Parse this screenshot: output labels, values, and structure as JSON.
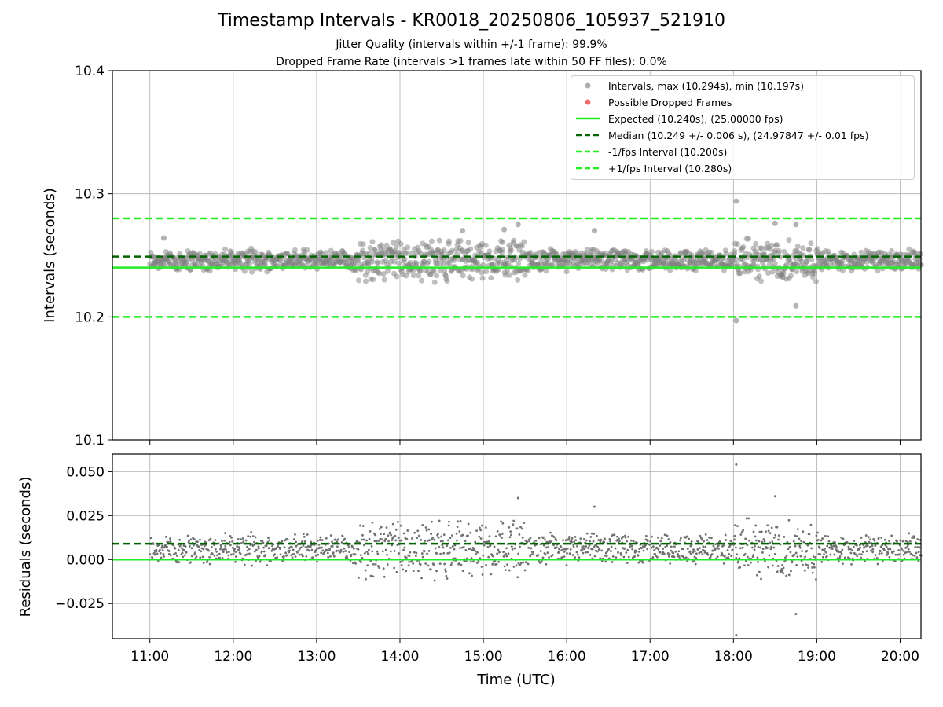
{
  "chart_data": [
    {
      "type": "scatter",
      "title": "Timestamp Intervals - KR0018_20250806_105937_521910",
      "subtitle_lines": [
        "Jitter Quality (intervals within +/-1 frame): 99.9%",
        "Dropped Frame Rate (intervals >1 frames late within 50 FF files): 0.0%"
      ],
      "ylabel": "Intervals (seconds)",
      "ylim": [
        10.1,
        10.4
      ],
      "y_ticks": [
        "10.1",
        "10.2",
        "10.3",
        "10.4"
      ],
      "xlim": [
        "10:33",
        "20:15"
      ],
      "grid": true,
      "legend_position": "top-right",
      "legend": [
        {
          "label": "Intervals, max (10.294s), min (10.197s)",
          "style": "dot",
          "color": "#a0a0a0"
        },
        {
          "label": "Possible Dropped Frames",
          "style": "dot",
          "color": "#f26b6b"
        },
        {
          "label": "Expected (10.240s), (25.00000 fps)",
          "style": "solid",
          "color": "#22ee22"
        },
        {
          "label": "Median (10.249 +/- 0.006 s), (24.97847 +/- 0.01 fps)",
          "style": "dashed",
          "color": "#006400"
        },
        {
          "label": "-1/fps Interval (10.200s)",
          "style": "dashed",
          "color": "#22ee22"
        },
        {
          "label": "+1/fps Interval (10.280s)",
          "style": "dashed",
          "color": "#22ee22"
        }
      ],
      "reference_lines": {
        "expected": 10.24,
        "median": 10.249,
        "minus_1fps": 10.2,
        "plus_1fps": 10.28
      },
      "series": [
        {
          "name": "Intervals",
          "x_range": [
            "11:00",
            "20:15"
          ],
          "typical_band": [
            10.236,
            10.256
          ],
          "max": 10.294,
          "min": 10.197,
          "outliers": [
            {
              "x": "18:02",
              "y": 10.294
            },
            {
              "x": "18:02",
              "y": 10.197
            },
            {
              "x": "18:45",
              "y": 10.209
            },
            {
              "x": "18:45",
              "y": 10.275
            },
            {
              "x": "15:15",
              "y": 10.271
            },
            {
              "x": "15:25",
              "y": 10.275
            },
            {
              "x": "16:20",
              "y": 10.27
            },
            {
              "x": "14:45",
              "y": 10.27
            },
            {
              "x": "18:30",
              "y": 10.276
            },
            {
              "x": "11:10",
              "y": 10.264
            }
          ]
        },
        {
          "name": "Possible Dropped Frames",
          "values": []
        }
      ]
    },
    {
      "type": "scatter",
      "xlabel": "Time (UTC)",
      "ylabel": "Residuals (seconds)",
      "ylim": [
        -0.045,
        0.06
      ],
      "y_ticks": [
        "−0.025",
        "0.000",
        "0.025",
        "0.050"
      ],
      "x_ticks": [
        "11:00",
        "12:00",
        "13:00",
        "14:00",
        "15:00",
        "16:00",
        "17:00",
        "18:00",
        "19:00",
        "20:00"
      ],
      "grid": true,
      "reference_lines": {
        "expected": 0.0,
        "median": 0.009
      },
      "series": [
        {
          "name": "Residuals",
          "typical_band": [
            -0.004,
            0.016
          ],
          "max": 0.054,
          "min": -0.043,
          "outliers": [
            {
              "x": "18:02",
              "y": 0.054
            },
            {
              "x": "18:02",
              "y": -0.043
            },
            {
              "x": "18:45",
              "y": -0.031
            },
            {
              "x": "18:30",
              "y": 0.036
            },
            {
              "x": "15:25",
              "y": 0.035
            },
            {
              "x": "16:20",
              "y": 0.03
            }
          ]
        }
      ]
    }
  ]
}
